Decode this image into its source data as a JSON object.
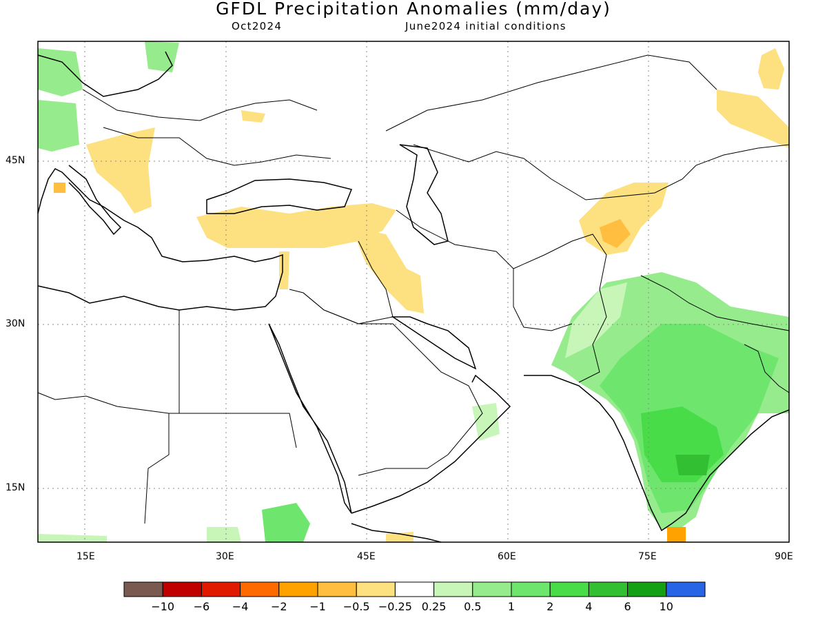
{
  "title": "GFDL Precipitation Anomalies (mm/day)",
  "subtitle_left": "Oct2024",
  "subtitle_right": "June2024 initial conditions",
  "lat_labels": [
    "45N",
    "30N",
    "15N"
  ],
  "lon_labels": [
    "15E",
    "30E",
    "45E",
    "60E",
    "75E",
    "90E"
  ],
  "colorbar": {
    "labels": [
      "−10",
      "−6",
      "−4",
      "−2",
      "−1",
      "−0.5",
      "−0.25",
      "0.25",
      "0.5",
      "1",
      "2",
      "4",
      "6",
      "10"
    ],
    "colors": [
      "#7a5a50",
      "#c00000",
      "#e01a00",
      "#ff6a00",
      "#ffa200",
      "#ffbe40",
      "#fde080",
      "#ffffff",
      "#c8f5b8",
      "#96eb8c",
      "#6ee66e",
      "#48dc48",
      "#32c032",
      "#14a014",
      "#2864e6"
    ]
  },
  "map": {
    "lat_range": [
      10,
      55
    ],
    "lon_range": [
      10,
      90
    ],
    "projection": "equirectangular",
    "gridlines": "dotted"
  },
  "colors": {
    "coastline": "#000000",
    "frame": "#000000",
    "gridline": "#888888"
  }
}
